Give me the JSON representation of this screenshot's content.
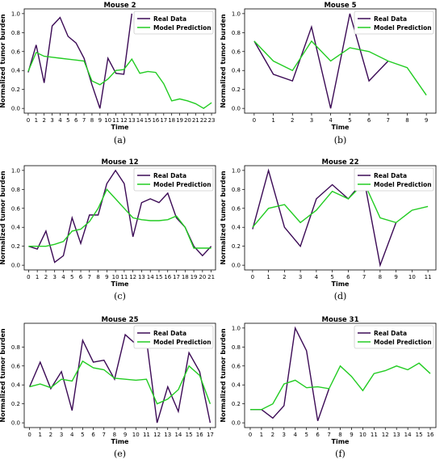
{
  "chart_data": [
    {
      "type": "line",
      "title": "Mouse 2",
      "xlabel": "Time",
      "ylabel": "Normalized tumor burden",
      "caption": "(a)",
      "xlim": [
        -0.5,
        23.5
      ],
      "ylim": [
        -0.05,
        1.05
      ],
      "xticks": [
        0,
        1,
        2,
        3,
        4,
        5,
        6,
        7,
        8,
        9,
        10,
        11,
        12,
        13,
        14,
        15,
        16,
        17,
        18,
        19,
        20,
        21,
        22,
        23
      ],
      "yticks": [
        0.0,
        0.2,
        0.4,
        0.6,
        0.8,
        1.0
      ],
      "ytick_labels": [
        "0.0",
        "0.2",
        "0.4",
        "0.6",
        "0.8",
        "1.0"
      ],
      "legend_position": "top-right",
      "series": [
        {
          "name": "Real Data",
          "color": "#3b0a55",
          "x": [
            0,
            1,
            2,
            3,
            4,
            5,
            6,
            7,
            8,
            9,
            10,
            11,
            12,
            13
          ],
          "y": [
            0.38,
            0.67,
            0.27,
            0.87,
            0.96,
            0.76,
            0.69,
            0.53,
            0.25,
            0.0,
            0.53,
            0.37,
            0.36,
            1.0
          ]
        },
        {
          "name": "Model Prediction",
          "color": "#22cc22",
          "x": [
            0,
            1,
            2,
            3,
            4,
            5,
            6,
            7,
            8,
            9,
            10,
            11,
            12,
            13,
            14,
            15,
            16,
            17,
            18,
            19,
            20,
            21,
            22,
            23
          ],
          "y": [
            0.39,
            0.59,
            0.55,
            0.54,
            0.53,
            0.52,
            0.51,
            0.5,
            0.29,
            0.25,
            0.31,
            0.4,
            0.41,
            0.52,
            0.37,
            0.39,
            0.38,
            0.26,
            0.08,
            0.1,
            0.08,
            0.05,
            0.0,
            0.06
          ]
        }
      ]
    },
    {
      "type": "line",
      "title": "Mouse 5",
      "xlabel": "Time",
      "ylabel": "Normalized tumor burden",
      "caption": "(b)",
      "xlim": [
        -0.5,
        9.5
      ],
      "ylim": [
        -0.05,
        1.05
      ],
      "xticks": [
        0,
        1,
        2,
        3,
        4,
        5,
        6,
        7,
        8,
        9
      ],
      "yticks": [
        0.0,
        0.2,
        0.4,
        0.6,
        0.8,
        1.0
      ],
      "ytick_labels": [
        "0.0",
        "0.2",
        "0.4",
        "0.6",
        "0.8",
        "1.0"
      ],
      "legend_position": "top-right",
      "series": [
        {
          "name": "Real Data",
          "color": "#3b0a55",
          "x": [
            0,
            1,
            2,
            3,
            4,
            5,
            6,
            7
          ],
          "y": [
            0.71,
            0.36,
            0.29,
            0.86,
            0.0,
            1.0,
            0.29,
            0.5
          ]
        },
        {
          "name": "Model Prediction",
          "color": "#22cc22",
          "x": [
            0,
            1,
            2,
            3,
            4,
            5,
            6,
            7,
            8,
            9
          ],
          "y": [
            0.71,
            0.5,
            0.4,
            0.71,
            0.5,
            0.64,
            0.6,
            0.5,
            0.43,
            0.14
          ]
        }
      ]
    },
    {
      "type": "line",
      "title": "Mouse 12",
      "xlabel": "Time",
      "ylabel": "Normalized tumor burden",
      "caption": "(c)",
      "xlim": [
        -0.5,
        21.5
      ],
      "ylim": [
        -0.05,
        1.05
      ],
      "xticks": [
        0,
        1,
        2,
        3,
        4,
        5,
        6,
        7,
        8,
        9,
        10,
        11,
        12,
        13,
        14,
        15,
        16,
        17,
        18,
        19,
        20,
        21
      ],
      "yticks": [
        0.0,
        0.2,
        0.4,
        0.6,
        0.8,
        1.0
      ],
      "ytick_labels": [
        "0.0",
        "0.2",
        "0.4",
        "0.6",
        "0.8",
        "1.0"
      ],
      "legend_position": "top-right",
      "series": [
        {
          "name": "Real Data",
          "color": "#3b0a55",
          "x": [
            0,
            1,
            2,
            3,
            4,
            5,
            6,
            7,
            8,
            9,
            10,
            11,
            12,
            13,
            14,
            15,
            16,
            17,
            18,
            19,
            20,
            21
          ],
          "y": [
            0.2,
            0.17,
            0.36,
            0.03,
            0.1,
            0.5,
            0.23,
            0.53,
            0.53,
            0.86,
            1.0,
            0.86,
            0.3,
            0.66,
            0.7,
            0.66,
            0.76,
            0.5,
            0.4,
            0.2,
            0.1,
            0.2
          ]
        },
        {
          "name": "Model Prediction",
          "color": "#22cc22",
          "x": [
            0,
            1,
            2,
            3,
            4,
            5,
            6,
            7,
            8,
            9,
            10,
            11,
            12,
            13,
            14,
            15,
            16,
            17,
            18,
            19,
            20,
            21
          ],
          "y": [
            0.2,
            0.2,
            0.2,
            0.22,
            0.25,
            0.36,
            0.38,
            0.46,
            0.6,
            0.8,
            0.7,
            0.6,
            0.5,
            0.48,
            0.47,
            0.47,
            0.48,
            0.52,
            0.4,
            0.18,
            0.18,
            0.18
          ]
        }
      ]
    },
    {
      "type": "line",
      "title": "Mouse 22",
      "xlabel": "Time",
      "ylabel": "Normalized tumor burden",
      "caption": "(d)",
      "xlim": [
        -0.5,
        11.5
      ],
      "ylim": [
        -0.05,
        1.05
      ],
      "xticks": [
        0,
        1,
        2,
        3,
        4,
        5,
        6,
        7,
        8,
        9,
        10,
        11
      ],
      "yticks": [
        0.0,
        0.2,
        0.4,
        0.6,
        0.8,
        1.0
      ],
      "ytick_labels": [
        "0.0",
        "0.2",
        "0.4",
        "0.6",
        "0.8",
        "1.0"
      ],
      "legend_position": "top-right",
      "series": [
        {
          "name": "Real Data",
          "color": "#3b0a55",
          "x": [
            0,
            1,
            2,
            3,
            4,
            5,
            6,
            7,
            8,
            9
          ],
          "y": [
            0.38,
            1.0,
            0.4,
            0.2,
            0.7,
            0.85,
            0.7,
            0.9,
            0.0,
            0.45
          ]
        },
        {
          "name": "Model Prediction",
          "color": "#22cc22",
          "x": [
            0,
            1,
            2,
            3,
            4,
            5,
            6,
            7,
            8,
            9,
            10,
            11
          ],
          "y": [
            0.4,
            0.6,
            0.64,
            0.45,
            0.58,
            0.78,
            0.7,
            0.87,
            0.5,
            0.45,
            0.58,
            0.62
          ]
        }
      ]
    },
    {
      "type": "line",
      "title": "Mouse 25",
      "xlabel": "Time",
      "ylabel": "Normalized tumor burden",
      "caption": "(e)",
      "xlim": [
        -0.5,
        17.5
      ],
      "ylim": [
        -0.05,
        1.05
      ],
      "xticks": [
        0,
        1,
        2,
        3,
        4,
        5,
        6,
        7,
        8,
        9,
        10,
        11,
        12,
        13,
        14,
        15,
        16,
        17
      ],
      "yticks": [
        0.0,
        0.2,
        0.4,
        0.6,
        0.8
      ],
      "ytick_labels": [
        "0.0",
        "0.2",
        "0.4",
        "0.6",
        "0.8"
      ],
      "legend_position": "top-right",
      "series": [
        {
          "name": "Real Data",
          "color": "#3b0a55",
          "x": [
            0,
            1,
            2,
            3,
            4,
            5,
            6,
            7,
            8,
            9,
            10,
            11,
            12,
            13,
            14,
            15,
            16,
            17
          ],
          "y": [
            0.38,
            0.64,
            0.36,
            0.54,
            0.13,
            0.87,
            0.64,
            0.66,
            0.46,
            0.93,
            0.83,
            0.88,
            0.0,
            0.38,
            0.12,
            0.74,
            0.54,
            0.0
          ]
        },
        {
          "name": "Model Prediction",
          "color": "#22cc22",
          "x": [
            0,
            1,
            2,
            3,
            4,
            5,
            6,
            7,
            8,
            9,
            10,
            11,
            12,
            13,
            14,
            15,
            16,
            17
          ],
          "y": [
            0.38,
            0.41,
            0.37,
            0.46,
            0.44,
            0.65,
            0.58,
            0.56,
            0.47,
            0.46,
            0.45,
            0.46,
            0.2,
            0.25,
            0.35,
            0.6,
            0.5,
            0.2
          ]
        }
      ]
    },
    {
      "type": "line",
      "title": "Mouse 31",
      "xlabel": "Time",
      "ylabel": "Normalized tumor burden",
      "caption": "(f)",
      "xlim": [
        -0.5,
        16.5
      ],
      "ylim": [
        -0.05,
        1.05
      ],
      "xticks": [
        0,
        1,
        2,
        3,
        4,
        5,
        6,
        7,
        8,
        9,
        10,
        11,
        12,
        13,
        14,
        15,
        16
      ],
      "yticks": [
        0.0,
        0.2,
        0.4,
        0.6,
        0.8,
        1.0
      ],
      "ytick_labels": [
        "0.0",
        "0.2",
        "0.4",
        "0.6",
        "0.8",
        "1.0"
      ],
      "legend_position": "top-right",
      "series": [
        {
          "name": "Real Data",
          "color": "#3b0a55",
          "x": [
            0,
            1,
            2,
            3,
            4,
            5,
            6,
            7
          ],
          "y": [
            0.14,
            0.14,
            0.05,
            0.18,
            1.0,
            0.76,
            0.02,
            0.36
          ]
        },
        {
          "name": "Model Prediction",
          "color": "#22cc22",
          "x": [
            0,
            1,
            2,
            3,
            4,
            5,
            6,
            7,
            8,
            9,
            10,
            11,
            12,
            13,
            14,
            15,
            16
          ],
          "y": [
            0.14,
            0.14,
            0.2,
            0.41,
            0.45,
            0.37,
            0.38,
            0.36,
            0.6,
            0.49,
            0.34,
            0.52,
            0.55,
            0.6,
            0.56,
            0.63,
            0.52
          ]
        }
      ]
    }
  ]
}
